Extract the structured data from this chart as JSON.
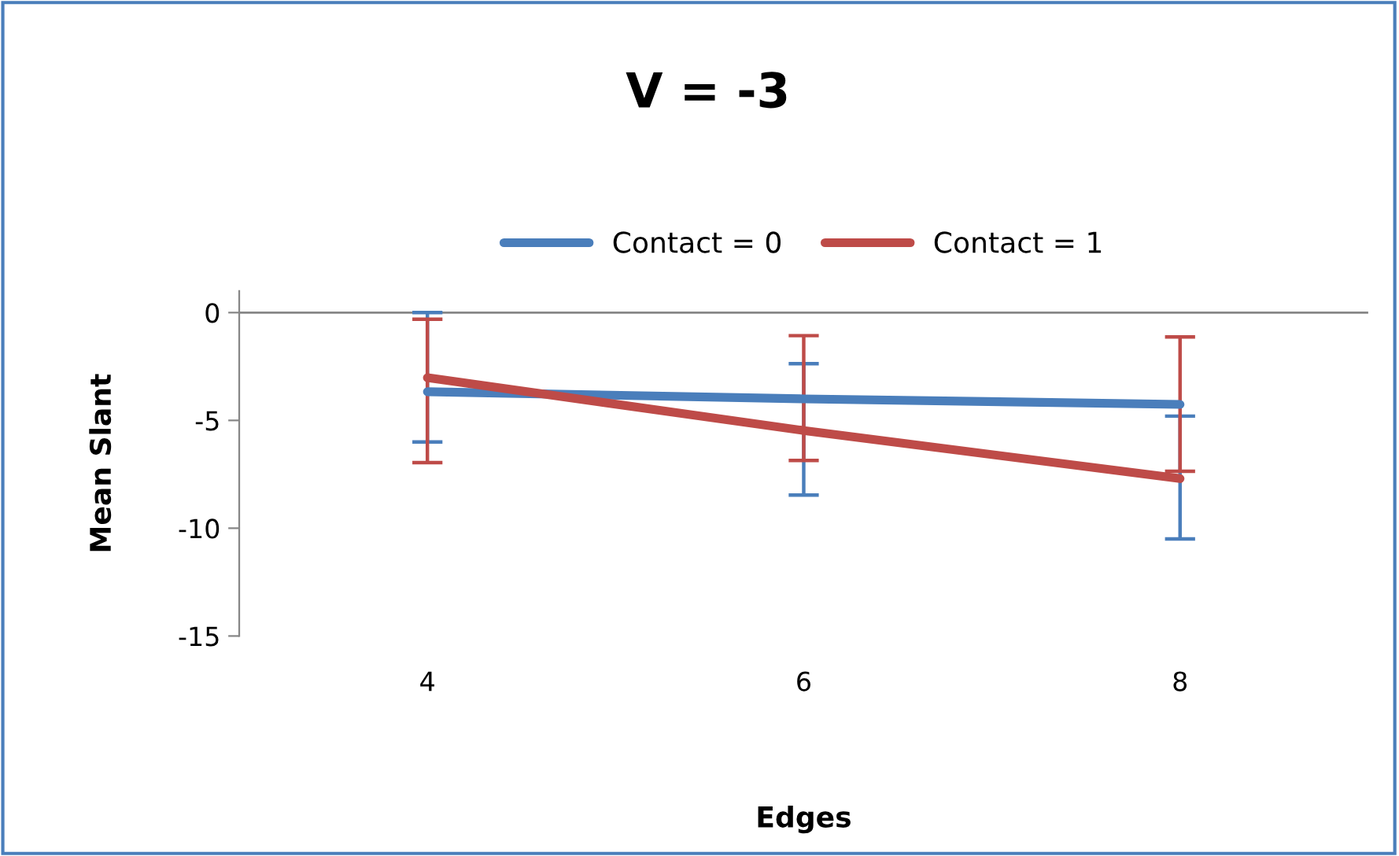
{
  "chart_data": {
    "type": "line",
    "title": "V = -3",
    "xlabel": "Edges",
    "ylabel": "Mean Slant",
    "categories": [
      "4",
      "6",
      "8"
    ],
    "series": [
      {
        "name": "Contact = 0",
        "color": "#4a7ebb",
        "values": [
          -3.67,
          -4.0,
          -4.26
        ],
        "errors": [
          [
            -6.0,
            0
          ],
          [
            -8.46,
            -2.37
          ],
          [
            -10.5,
            -4.8
          ]
        ]
      },
      {
        "name": "Contact = 1",
        "color": "#be4b48",
        "values": [
          -3.02,
          -5.47,
          -7.7
        ],
        "errors": [
          [
            -6.96,
            -0.31
          ],
          [
            -6.86,
            -1.07
          ],
          [
            -7.36,
            -1.13
          ]
        ]
      }
    ],
    "ylim": [
      -15,
      1
    ],
    "yticks": [
      -15,
      -10,
      -5,
      0
    ],
    "ref_lines": [
      {
        "axis": "y",
        "value": 0,
        "color": "#868686"
      }
    ],
    "grid": false,
    "legend": "top",
    "marker": "none",
    "line_style": "solid"
  }
}
